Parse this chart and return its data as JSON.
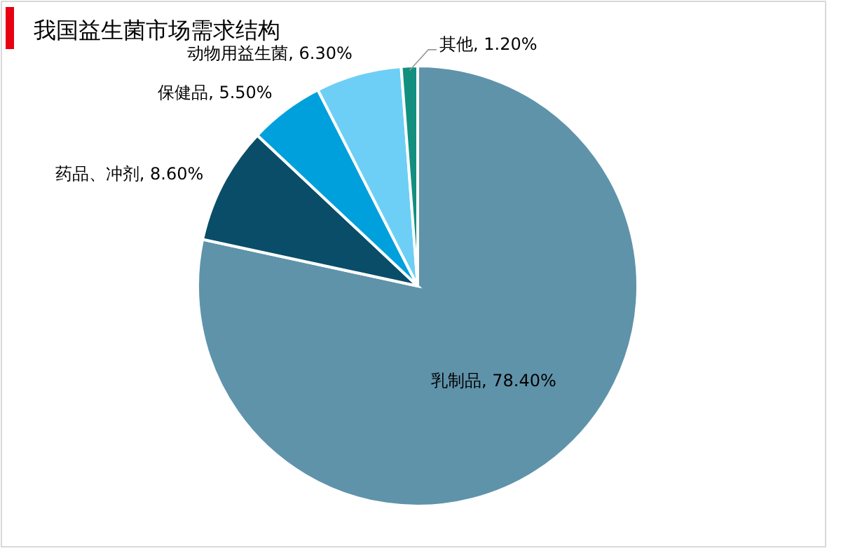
{
  "chart_data": {
    "type": "pie",
    "title": "我国益生菌市场需求结构",
    "categories": [
      "乳制品",
      "药品、冲剂",
      "保健品",
      "动物用益生菌",
      "其他"
    ],
    "values": [
      78.4,
      8.6,
      5.5,
      6.3,
      1.2
    ],
    "value_labels": [
      "78.40%",
      "8.60%",
      "5.50%",
      "6.30%",
      "1.20%"
    ],
    "colors": [
      "#5f93aa",
      "#0a4d68",
      "#00a0dc",
      "#6dcff5",
      "#138f7f"
    ]
  }
}
